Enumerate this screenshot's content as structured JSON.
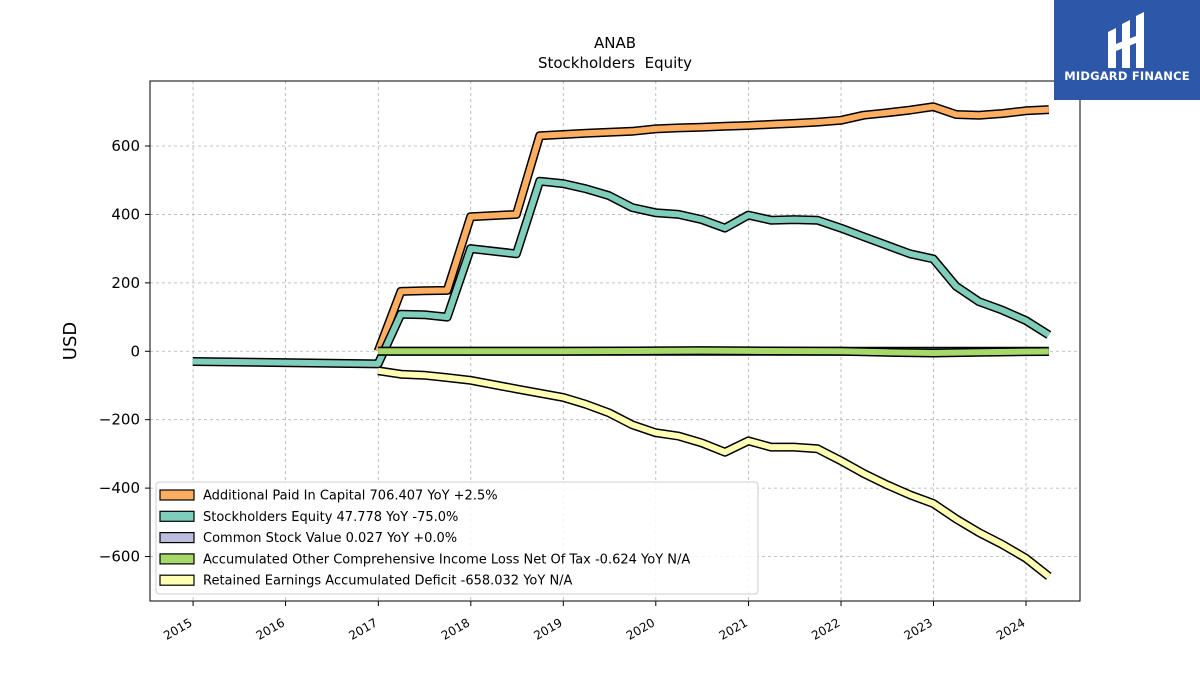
{
  "logo": {
    "icon": "midgard-logo-icon",
    "text": "MIDGARD FINANCE"
  },
  "chart_data": {
    "type": "line",
    "title": "ANAB",
    "subtitle": "Stockholders  Equity",
    "ylabel": "USD",
    "xlabel": "",
    "xlim": [
      "2014-07-15",
      "2024-08-01"
    ],
    "ylim": [
      -730,
      790
    ],
    "x_ticks": [
      "2015",
      "2016",
      "2017",
      "2018",
      "2019",
      "2020",
      "2021",
      "2022",
      "2023",
      "2024"
    ],
    "y_ticks": [
      -600,
      -400,
      -200,
      0,
      200,
      400,
      600
    ],
    "y_tick_labels": [
      "−600",
      "−400",
      "−200",
      "0",
      "200",
      "400",
      "600"
    ],
    "grid": true,
    "legend_position": "lower-left",
    "series": [
      {
        "name": "Additional Paid In Capital",
        "legend": "Additional Paid In Capital  706.407 YoY +2.5%",
        "color": "#fdae61",
        "points": [
          [
            "2016-12-31",
            0
          ],
          [
            "2017-03-31",
            175
          ],
          [
            "2017-06-30",
            177
          ],
          [
            "2017-09-30",
            178
          ],
          [
            "2017-12-31",
            393
          ],
          [
            "2018-06-30",
            400
          ],
          [
            "2018-09-30",
            630
          ],
          [
            "2019-03-31",
            637
          ],
          [
            "2019-06-30",
            640
          ],
          [
            "2019-09-30",
            643
          ],
          [
            "2019-12-31",
            650
          ],
          [
            "2020-03-31",
            653
          ],
          [
            "2020-06-30",
            655
          ],
          [
            "2020-09-30",
            658
          ],
          [
            "2020-12-31",
            660
          ],
          [
            "2021-03-31",
            663
          ],
          [
            "2021-06-30",
            666
          ],
          [
            "2021-09-30",
            670
          ],
          [
            "2021-12-31",
            675
          ],
          [
            "2022-03-31",
            690
          ],
          [
            "2022-06-30",
            697
          ],
          [
            "2022-09-30",
            705
          ],
          [
            "2022-12-31",
            715
          ],
          [
            "2023-03-31",
            692
          ],
          [
            "2023-06-30",
            690
          ],
          [
            "2023-09-30",
            695
          ],
          [
            "2023-12-31",
            703
          ],
          [
            "2024-03-31",
            706.407
          ]
        ]
      },
      {
        "name": "Stockholders Equity",
        "legend": "Stockholders Equity  47.778 YoY -75.0%",
        "color": "#7fcdbb",
        "points": [
          [
            "2014-12-31",
            -30
          ],
          [
            "2016-12-31",
            -37
          ],
          [
            "2017-03-31",
            108
          ],
          [
            "2017-06-30",
            107
          ],
          [
            "2017-09-30",
            100
          ],
          [
            "2017-12-31",
            300
          ],
          [
            "2018-06-30",
            285
          ],
          [
            "2018-09-30",
            497
          ],
          [
            "2018-12-31",
            490
          ],
          [
            "2019-03-31",
            475
          ],
          [
            "2019-06-30",
            455
          ],
          [
            "2019-09-30",
            420
          ],
          [
            "2019-12-31",
            405
          ],
          [
            "2020-03-31",
            400
          ],
          [
            "2020-06-30",
            385
          ],
          [
            "2020-09-30",
            360
          ],
          [
            "2020-12-31",
            398
          ],
          [
            "2021-03-31",
            383
          ],
          [
            "2021-06-30",
            385
          ],
          [
            "2021-09-30",
            383
          ],
          [
            "2021-12-31",
            360
          ],
          [
            "2022-03-31",
            335
          ],
          [
            "2022-06-30",
            310
          ],
          [
            "2022-09-30",
            285
          ],
          [
            "2022-12-31",
            270
          ],
          [
            "2023-03-31",
            190
          ],
          [
            "2023-06-30",
            145
          ],
          [
            "2023-09-30",
            120
          ],
          [
            "2023-12-31",
            90
          ],
          [
            "2024-03-31",
            47.778
          ]
        ]
      },
      {
        "name": "Common Stock Value",
        "legend": "Common Stock Value  0.027 YoY +0.0%",
        "color": "#bcbddc",
        "points": [
          [
            "2016-12-31",
            0.02
          ],
          [
            "2017-12-31",
            0.02
          ],
          [
            "2018-12-31",
            0.025
          ],
          [
            "2019-12-31",
            0.025
          ],
          [
            "2020-12-31",
            0.026
          ],
          [
            "2021-12-31",
            0.026
          ],
          [
            "2022-12-31",
            0.027
          ],
          [
            "2023-12-31",
            0.027
          ],
          [
            "2024-03-31",
            0.027
          ]
        ]
      },
      {
        "name": "Accumulated Other Comprehensive Income Loss Net Of Tax",
        "legend": "Accumulated Other Comprehensive Income Loss Net Of Tax  -0.624 YoY N/A",
        "color": "#a6d96a",
        "points": [
          [
            "2016-12-31",
            0
          ],
          [
            "2017-12-31",
            0
          ],
          [
            "2018-12-31",
            0
          ],
          [
            "2019-12-31",
            1
          ],
          [
            "2020-06-30",
            2
          ],
          [
            "2020-12-31",
            1
          ],
          [
            "2021-12-31",
            0
          ],
          [
            "2022-06-30",
            -3
          ],
          [
            "2022-12-31",
            -5
          ],
          [
            "2023-06-30",
            -3
          ],
          [
            "2023-12-31",
            -1
          ],
          [
            "2024-03-31",
            -0.624
          ]
        ]
      },
      {
        "name": "Retained Earnings Accumulated Deficit",
        "legend": "Retained Earnings Accumulated Deficit  -658.032 YoY N/A",
        "color": "#ffffb3",
        "points": [
          [
            "2016-12-31",
            -57
          ],
          [
            "2017-03-31",
            -67
          ],
          [
            "2017-06-30",
            -70
          ],
          [
            "2017-09-30",
            -77
          ],
          [
            "2017-12-31",
            -85
          ],
          [
            "2018-06-30",
            -110
          ],
          [
            "2018-12-31",
            -135
          ],
          [
            "2019-03-31",
            -155
          ],
          [
            "2019-06-30",
            -180
          ],
          [
            "2019-09-30",
            -215
          ],
          [
            "2019-12-31",
            -238
          ],
          [
            "2020-03-31",
            -248
          ],
          [
            "2020-06-30",
            -268
          ],
          [
            "2020-09-30",
            -295
          ],
          [
            "2020-12-31",
            -262
          ],
          [
            "2021-03-31",
            -280
          ],
          [
            "2021-06-30",
            -280
          ],
          [
            "2021-09-30",
            -285
          ],
          [
            "2021-12-31",
            -320
          ],
          [
            "2022-03-31",
            -357
          ],
          [
            "2022-06-30",
            -390
          ],
          [
            "2022-09-30",
            -420
          ],
          [
            "2022-12-31",
            -445
          ],
          [
            "2023-03-31",
            -490
          ],
          [
            "2023-06-30",
            -530
          ],
          [
            "2023-09-30",
            -565
          ],
          [
            "2023-12-31",
            -605
          ],
          [
            "2024-03-31",
            -658.032
          ]
        ]
      }
    ]
  }
}
